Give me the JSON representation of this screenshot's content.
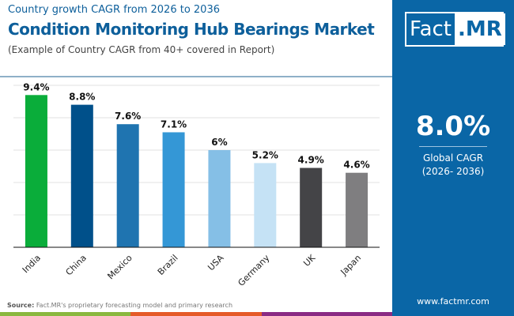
{
  "header": {
    "subtitle_top": "Country growth CAGR from 2026 to 2036",
    "title": "Condition Monitoring Hub Bearings Market",
    "note": "(Example of Country CAGR from 40+ covered in Report)"
  },
  "panel": {
    "logo_left": "Fact",
    "logo_right": ".MR",
    "global_value": "8.0%",
    "global_label": "Global CAGR",
    "global_period": "(2026- 2036)",
    "website": "www.factmr.com"
  },
  "footer": {
    "source_label": "Source:",
    "source_text": "Fact.MR's proprietary forecasting model and primary research"
  },
  "chart_data": {
    "type": "bar",
    "title": "Condition Monitoring Hub Bearings Market",
    "categories": [
      "India",
      "China",
      "Mexico",
      "Brazil",
      "USA",
      "Germany",
      "UK",
      "Japan"
    ],
    "values": [
      9.4,
      8.8,
      7.6,
      7.1,
      6,
      5.2,
      4.9,
      4.6
    ],
    "labels": [
      "9.4%",
      "8.8%",
      "7.6%",
      "7.1%",
      "6%",
      "5.2%",
      "4.9%",
      "4.6%"
    ],
    "colors": [
      "#0aad3a",
      "#00508a",
      "#1f74b0",
      "#3497d6",
      "#85bfe6",
      "#c5e2f5",
      "#444447",
      "#7f7e80"
    ],
    "ylim": [
      0,
      10
    ],
    "grid": true,
    "unit": "%"
  },
  "colors": {
    "brand": "#0a66a6",
    "stripe": [
      "#8ab83f",
      "#e55a28",
      "#8a2b84"
    ]
  }
}
